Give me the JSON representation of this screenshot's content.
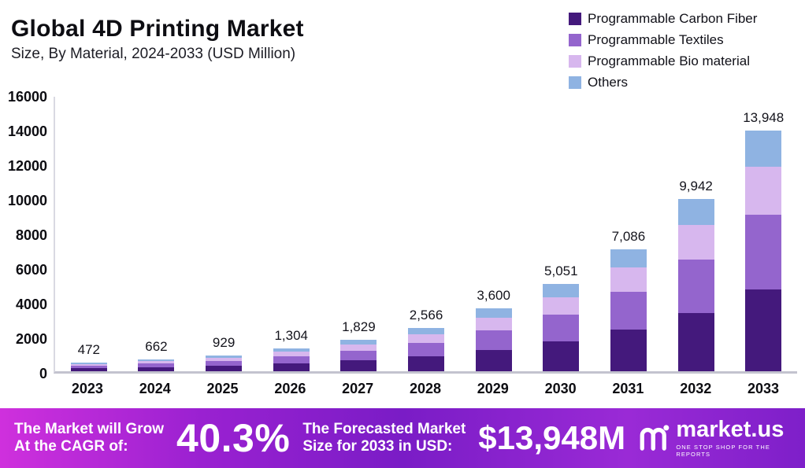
{
  "header": {
    "title": "Global 4D Printing Market",
    "subtitle": "Size, By Material, 2024-2033 (USD Million)"
  },
  "legend": [
    {
      "label": "Programmable Carbon Fiber",
      "color": "#44197c"
    },
    {
      "label": "Programmable Textiles",
      "color": "#9465cd"
    },
    {
      "label": "Programmable Bio material",
      "color": "#d7b7ee"
    },
    {
      "label": "Others",
      "color": "#8fb3e2"
    }
  ],
  "chart_data": {
    "type": "bar",
    "stacked": true,
    "title": "Global 4D Printing Market Size, By Material, 2024-2033 (USD Million)",
    "categories": [
      "2023",
      "2024",
      "2025",
      "2026",
      "2027",
      "2028",
      "2029",
      "2030",
      "2031",
      "2032",
      "2033"
    ],
    "series": [
      {
        "name": "Programmable Carbon Fiber",
        "color": "#44197c",
        "values": [
          160,
          225,
          316,
          443,
          622,
          872,
          1224,
          1717,
          2409,
          3380,
          4742
        ]
      },
      {
        "name": "Programmable Textiles",
        "color": "#9465cd",
        "values": [
          147,
          205,
          288,
          404,
          567,
          795,
          1116,
          1566,
          2197,
          3082,
          4324
        ]
      },
      {
        "name": "Programmable Bio material",
        "color": "#d7b7ee",
        "values": [
          94,
          132,
          186,
          261,
          366,
          513,
          720,
          1010,
          1417,
          1988,
          2790
        ]
      },
      {
        "name": "Others",
        "color": "#8fb3e2",
        "values": [
          71,
          100,
          139,
          196,
          274,
          386,
          540,
          758,
          1063,
          1492,
          2092
        ]
      }
    ],
    "totals": [
      472,
      662,
      929,
      1304,
      1829,
      2566,
      3600,
      5051,
      7086,
      9942,
      13948
    ],
    "totals_labels": [
      "472",
      "662",
      "929",
      "1,304",
      "1,829",
      "2,566",
      "3,600",
      "5,051",
      "7,086",
      "9,942",
      "13,948"
    ],
    "xlabel": "",
    "ylabel": "",
    "ylim": [
      0,
      16000
    ],
    "ytick": 2000,
    "grid": false,
    "legend_position": "top-right"
  },
  "footer": {
    "grow_line1": "The Market will Grow",
    "grow_line2": "At the CAGR of:",
    "cagr": "40.3%",
    "forecast_line1": "The Forecasted Market",
    "forecast_line2": "Size for 2033 in USD:",
    "forecast_value": "$13,948M",
    "brand": "market.us",
    "tagline": "ONE STOP SHOP FOR THE REPORTS"
  }
}
